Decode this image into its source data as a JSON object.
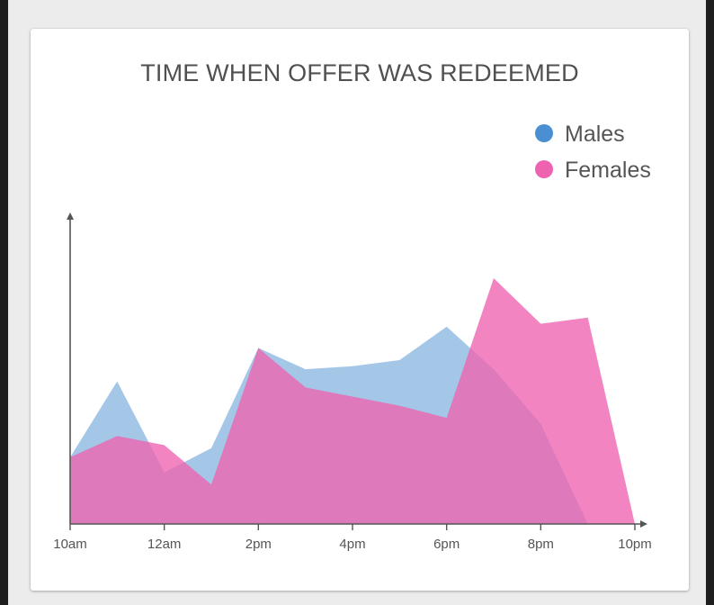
{
  "chart_data": {
    "type": "area",
    "title": "TIME WHEN OFFER WAS REDEEMED",
    "xlabel": "",
    "ylabel": "",
    "x": [
      0,
      1,
      2,
      3,
      4,
      5,
      6,
      7,
      8,
      9,
      10,
      11,
      12
    ],
    "x_ticks": [
      {
        "x": 0,
        "label": "10am"
      },
      {
        "x": 2,
        "label": "12am"
      },
      {
        "x": 4,
        "label": "2pm"
      },
      {
        "x": 6,
        "label": "4pm"
      },
      {
        "x": 8,
        "label": "6pm"
      },
      {
        "x": 10,
        "label": "8pm"
      },
      {
        "x": 12,
        "label": "10pm"
      }
    ],
    "ylim": [
      0,
      100
    ],
    "grid": false,
    "legend_position": "top-right",
    "series": [
      {
        "name": "Males",
        "color": "#4a8fd2",
        "values": [
          22,
          47,
          17,
          25,
          58,
          51,
          52,
          54,
          65,
          51,
          33,
          0,
          0
        ]
      },
      {
        "name": "Females",
        "color": "#ee63b0",
        "values": [
          22,
          29,
          26,
          13,
          58,
          45,
          42,
          39,
          35,
          81,
          66,
          68,
          0
        ]
      }
    ]
  }
}
